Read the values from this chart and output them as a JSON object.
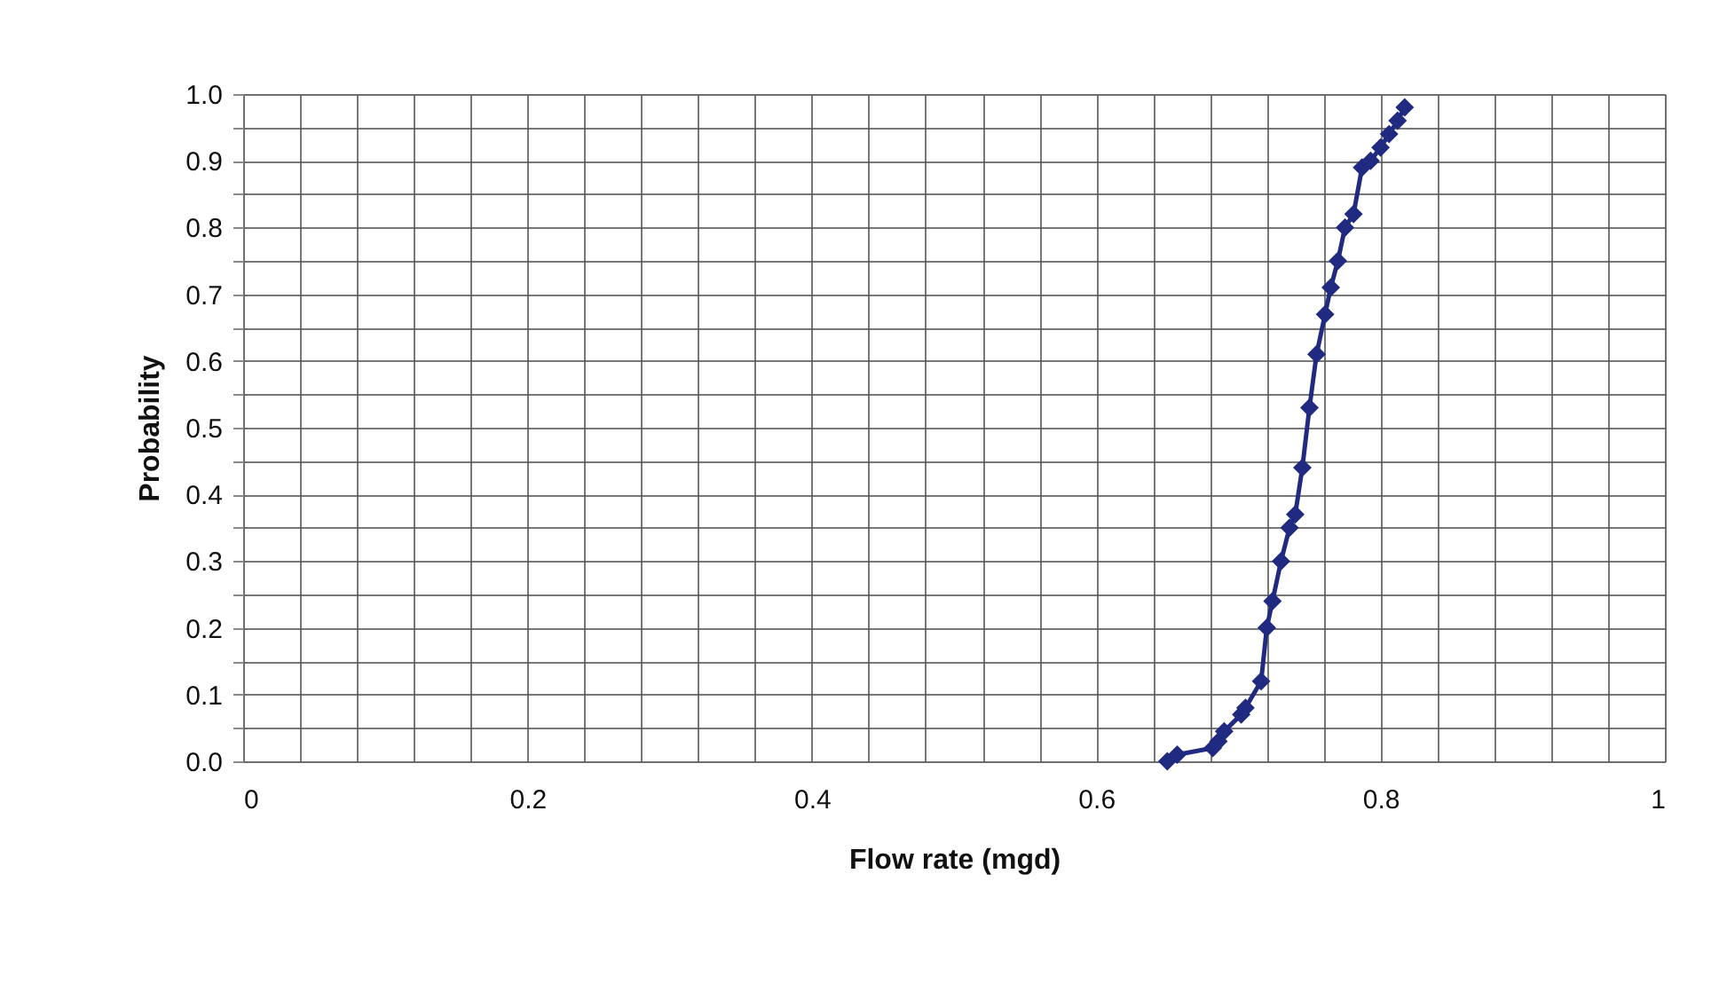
{
  "chart_data": {
    "type": "line",
    "xlabel": "Flow rate (mgd)",
    "ylabel": "Probability",
    "x": [
      0.65,
      0.657,
      0.682,
      0.686,
      0.69,
      0.702,
      0.705,
      0.716,
      0.72,
      0.724,
      0.73,
      0.736,
      0.74,
      0.745,
      0.75,
      0.755,
      0.761,
      0.765,
      0.77,
      0.775,
      0.781,
      0.787,
      0.793,
      0.8,
      0.806,
      0.812,
      0.817
    ],
    "series": [
      {
        "color": "#1f2a80",
        "values": [
          0.0,
          0.01,
          0.02,
          0.03,
          0.045,
          0.07,
          0.08,
          0.12,
          0.2,
          0.24,
          0.3,
          0.35,
          0.37,
          0.44,
          0.53,
          0.61,
          0.67,
          0.71,
          0.75,
          0.8,
          0.82,
          0.89,
          0.9,
          0.92,
          0.94,
          0.96,
          0.98
        ]
      }
    ],
    "xlim": [
      0,
      1
    ],
    "xticks": [
      0,
      {
        "value": 0.04,
        "label": null
      },
      {
        "value": 0.08,
        "label": null
      },
      {
        "value": 0.12,
        "label": null
      },
      {
        "value": 0.16,
        "label": null
      },
      0.2,
      {
        "value": 0.24,
        "label": null
      },
      {
        "value": 0.28,
        "label": null
      },
      {
        "value": 0.32,
        "label": null
      },
      {
        "value": 0.36,
        "label": null
      },
      0.4,
      {
        "value": 0.44,
        "label": null
      },
      {
        "value": 0.48,
        "label": null
      },
      {
        "value": 0.52,
        "label": null
      },
      {
        "value": 0.56,
        "label": null
      },
      0.6,
      {
        "value": 0.64,
        "label": null
      },
      {
        "value": 0.68,
        "label": null
      },
      {
        "value": 0.72,
        "label": null
      },
      {
        "value": 0.76,
        "label": null
      },
      0.8,
      {
        "value": 0.84,
        "label": null
      },
      {
        "value": 0.88,
        "label": null
      },
      {
        "value": 0.92,
        "label": null
      },
      {
        "value": 0.96,
        "label": null
      },
      1
    ],
    "ylim": [
      0,
      1
    ],
    "yticks": [
      {
        "value": 0,
        "label": "0.0"
      },
      {
        "value": 0.05,
        "label": null
      },
      0.1,
      {
        "value": 0.15,
        "label": null
      },
      0.2,
      {
        "value": 0.25,
        "label": null
      },
      0.3,
      {
        "value": 0.35,
        "label": null
      },
      0.4,
      {
        "value": 0.45,
        "label": null
      },
      0.5,
      {
        "value": 0.55,
        "label": null
      },
      0.6,
      {
        "value": 0.65,
        "label": null
      },
      0.7,
      {
        "value": 0.75,
        "label": null
      },
      0.8,
      {
        "value": 0.85,
        "label": null
      },
      0.9,
      {
        "value": 0.95,
        "label": null
      },
      {
        "value": 1,
        "label": "1.0"
      }
    ],
    "grid": true,
    "marker": "diamond",
    "line_style": "solid"
  }
}
